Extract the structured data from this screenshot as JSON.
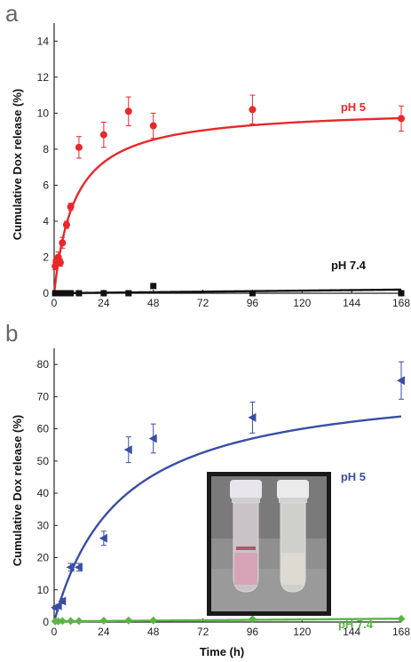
{
  "chart_data": [
    {
      "type": "scatter",
      "panel_letter": "a",
      "xlabel": "",
      "ylabel": "Cumulative Dox release (%)",
      "xlim": [
        0,
        168
      ],
      "ylim": [
        0,
        15
      ],
      "xticks": [
        0,
        24,
        48,
        72,
        96,
        120,
        144,
        168
      ],
      "yticks": [
        0,
        2,
        4,
        6,
        8,
        10,
        12,
        14
      ],
      "series": [
        {
          "name": "pH 5",
          "color": "#e8282b",
          "marker": "circle",
          "x": [
            0.5,
            1,
            2,
            3,
            4,
            6,
            8,
            12,
            24,
            36,
            48,
            96,
            168
          ],
          "y": [
            1.5,
            1.8,
            2.0,
            1.7,
            2.8,
            3.8,
            4.8,
            8.1,
            8.8,
            10.1,
            9.3,
            10.2,
            9.7
          ],
          "err": [
            0.2,
            0.2,
            0.3,
            0.2,
            0.3,
            0.2,
            0.2,
            0.6,
            0.7,
            0.8,
            0.7,
            0.8,
            0.7
          ],
          "fit_color": "#e8282b",
          "fit_model": "hyperbolic",
          "fit_params": {
            "ymax": 10.3,
            "k": 10
          }
        },
        {
          "name": "pH 7.4",
          "color": "#111111",
          "marker": "square",
          "x": [
            0.5,
            1,
            2,
            4,
            6,
            8,
            12,
            24,
            36,
            48,
            96,
            168
          ],
          "y": [
            0.0,
            0.0,
            0.0,
            0.0,
            0.0,
            0.0,
            0.0,
            0.0,
            0.0,
            0.4,
            0.0,
            0.0
          ],
          "err": [
            0,
            0,
            0,
            0,
            0,
            0,
            0,
            0,
            0,
            0,
            0,
            0
          ],
          "fit_color": "#111111",
          "fit_model": "linear",
          "fit_params": {
            "a": 0.0,
            "b": 0.0012
          }
        }
      ]
    },
    {
      "type": "scatter",
      "panel_letter": "b",
      "xlabel": "Time (h)",
      "ylabel": "Cumulative Dox release (%)",
      "xlim": [
        0,
        168
      ],
      "ylim": [
        0,
        85
      ],
      "xticks": [
        0,
        24,
        48,
        72,
        96,
        120,
        144,
        168
      ],
      "yticks": [
        0,
        10,
        20,
        30,
        40,
        50,
        60,
        70,
        80
      ],
      "inset": "photo of two vials",
      "series": [
        {
          "name": "pH 5",
          "color": "#3a4ea3",
          "marker": "triangle-left",
          "x": [
            0.5,
            2,
            4,
            8,
            12,
            24,
            36,
            48,
            96,
            168
          ],
          "y": [
            4.5,
            5.0,
            6.5,
            17.0,
            17.0,
            26.0,
            53.5,
            57.0,
            63.5,
            75.0
          ],
          "err": [
            0.5,
            0.5,
            0.8,
            1.2,
            1.2,
            2.2,
            4.0,
            4.5,
            4.8,
            5.8
          ],
          "fit_color": "#3a4ea3",
          "fit_model": "hyperbolic",
          "fit_params": {
            "ymax": 76,
            "k": 32
          }
        },
        {
          "name": "pH 7.4",
          "color": "#5ab546",
          "marker": "diamond",
          "x": [
            0.5,
            2,
            4,
            8,
            12,
            24,
            36,
            48,
            96,
            168
          ],
          "y": [
            0.2,
            0.2,
            0.3,
            0.3,
            0.3,
            0.4,
            0.5,
            0.5,
            0.9,
            1.0
          ],
          "err": [
            0,
            0,
            0,
            0,
            0,
            0,
            0,
            0,
            0,
            0
          ],
          "fit_color": "#5ab546",
          "fit_model": "linear",
          "fit_params": {
            "a": 0.2,
            "b": 0.005
          }
        }
      ]
    }
  ]
}
